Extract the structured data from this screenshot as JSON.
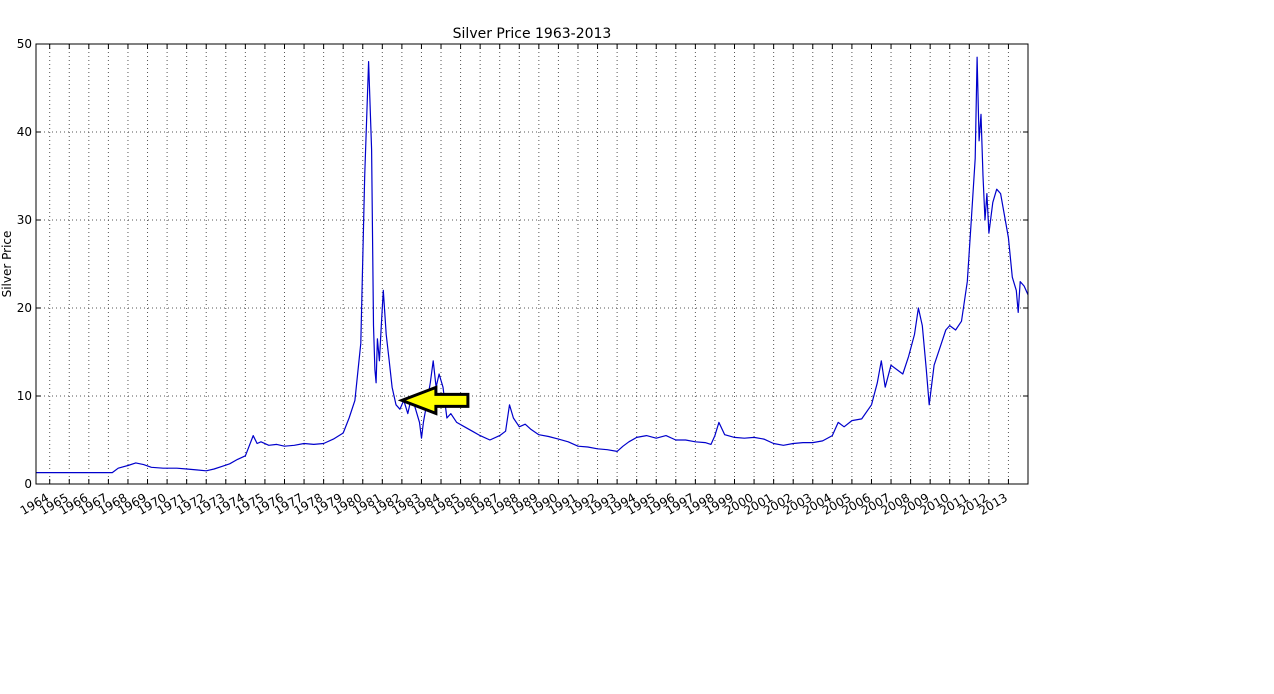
{
  "chart_data": {
    "type": "line",
    "title": "Silver Price 1963-2013",
    "xlabel": "",
    "ylabel": "Silver Price",
    "xlim": [
      1963.3,
      2014.0
    ],
    "ylim": [
      0,
      50
    ],
    "yticks": [
      0,
      10,
      20,
      30,
      40,
      50
    ],
    "xtick_labels": [
      "1964",
      "1965",
      "1966",
      "1967",
      "1968",
      "1969",
      "1970",
      "1971",
      "1972",
      "1973",
      "1974",
      "1975",
      "1976",
      "1977",
      "1978",
      "1979",
      "1980",
      "1981",
      "1982",
      "1983",
      "1984",
      "1985",
      "1986",
      "1987",
      "1988",
      "1989",
      "1990",
      "1991",
      "1992",
      "1993",
      "1994",
      "1995",
      "1996",
      "1997",
      "1998",
      "1999",
      "2000",
      "2001",
      "2002",
      "2003",
      "2004",
      "2005",
      "2006",
      "2007",
      "2008",
      "2009",
      "2010",
      "2011",
      "2012",
      "2013"
    ],
    "grid": true,
    "line_color": "#0000cc",
    "series": [
      {
        "x": [
          1963.3,
          1967.2,
          1967.5,
          1968.0,
          1968.4,
          1968.8,
          1969.2,
          1969.8,
          1970.5,
          1971.0,
          1971.5,
          1972.0,
          1972.4,
          1972.8,
          1973.2,
          1973.6,
          1974.0,
          1974.4,
          1974.6,
          1974.8,
          1975.2,
          1975.6,
          1976.0,
          1976.5,
          1977.0,
          1977.5,
          1978.0,
          1978.5,
          1979.0,
          1979.3,
          1979.6,
          1979.9,
          1980.1,
          1980.3,
          1980.45,
          1980.55,
          1980.62,
          1980.68,
          1980.75,
          1980.85,
          1980.95,
          1981.05,
          1981.2,
          1981.35,
          1981.5,
          1981.7,
          1981.9,
          1982.1,
          1982.3,
          1982.5,
          1982.7,
          1982.9,
          1983.0,
          1983.1,
          1983.3,
          1983.45,
          1983.6,
          1983.75,
          1983.9,
          1984.1,
          1984.3,
          1984.5,
          1984.8,
          1985.2,
          1985.6,
          1986.0,
          1986.5,
          1987.0,
          1987.3,
          1987.5,
          1987.7,
          1988.0,
          1988.3,
          1988.6,
          1989.0,
          1989.5,
          1990.0,
          1990.5,
          1991.0,
          1991.5,
          1992.0,
          1992.5,
          1993.0,
          1993.3,
          1993.6,
          1994.0,
          1994.5,
          1995.0,
          1995.5,
          1996.0,
          1996.5,
          1997.0,
          1997.5,
          1997.8,
          1998.0,
          1998.2,
          1998.5,
          1999.0,
          1999.5,
          2000.0,
          2000.5,
          2001.0,
          2001.5,
          2002.0,
          2002.5,
          2003.0,
          2003.5,
          2004.0,
          2004.3,
          2004.6,
          2005.0,
          2005.5,
          2006.0,
          2006.3,
          2006.5,
          2006.7,
          2007.0,
          2007.3,
          2007.6,
          2007.9,
          2008.2,
          2008.4,
          2008.6,
          2008.8,
          2008.95,
          2009.2,
          2009.5,
          2009.8,
          2010.0,
          2010.3,
          2010.6,
          2010.9,
          2011.1,
          2011.3,
          2011.4,
          2011.5,
          2011.6,
          2011.7,
          2011.8,
          2011.9,
          2012.0,
          2012.2,
          2012.4,
          2012.6,
          2012.8,
          2013.0,
          2013.2,
          2013.4,
          2013.5,
          2013.6,
          2013.8,
          2014.0
        ],
        "values": [
          1.3,
          1.3,
          1.8,
          2.1,
          2.4,
          2.2,
          1.9,
          1.8,
          1.8,
          1.7,
          1.6,
          1.5,
          1.7,
          2.0,
          2.3,
          2.8,
          3.2,
          5.5,
          4.6,
          4.8,
          4.4,
          4.5,
          4.3,
          4.4,
          4.6,
          4.5,
          4.6,
          5.1,
          5.8,
          7.5,
          9.5,
          16.0,
          35.0,
          48.0,
          38.0,
          18.0,
          13.0,
          11.5,
          16.5,
          14.0,
          18.0,
          22.0,
          17.0,
          14.0,
          11.0,
          9.0,
          8.5,
          9.5,
          8.0,
          10.0,
          8.5,
          7.0,
          5.2,
          7.0,
          9.5,
          11.5,
          14.0,
          11.0,
          12.5,
          11.0,
          7.5,
          8.0,
          7.0,
          6.5,
          6.0,
          5.5,
          5.0,
          5.5,
          6.0,
          9.0,
          7.5,
          6.5,
          6.8,
          6.2,
          5.6,
          5.4,
          5.1,
          4.8,
          4.3,
          4.2,
          4.0,
          3.9,
          3.7,
          4.3,
          4.8,
          5.3,
          5.5,
          5.2,
          5.5,
          5.0,
          5.0,
          4.8,
          4.7,
          4.5,
          5.5,
          7.0,
          5.6,
          5.3,
          5.2,
          5.3,
          5.1,
          4.6,
          4.4,
          4.6,
          4.7,
          4.7,
          4.9,
          5.5,
          7.0,
          6.5,
          7.2,
          7.4,
          9.0,
          11.5,
          14.0,
          11.0,
          13.5,
          13.0,
          12.5,
          14.5,
          17.0,
          20.0,
          18.0,
          13.0,
          9.0,
          13.5,
          15.5,
          17.5,
          18.0,
          17.5,
          18.5,
          23.0,
          30.0,
          37.0,
          48.5,
          39.0,
          42.0,
          35.0,
          30.0,
          33.0,
          28.5,
          32.0,
          33.5,
          33.0,
          30.5,
          28.0,
          23.5,
          22.0,
          19.5,
          23.0,
          22.5,
          21.5
        ]
      }
    ],
    "annotation": {
      "type": "arrow",
      "fill": "#ffff00",
      "stroke": "#000000",
      "points_to_x": 1982.0,
      "points_to_y": 9.5
    }
  }
}
